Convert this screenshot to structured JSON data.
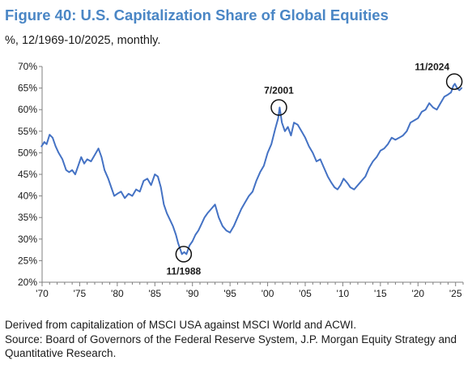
{
  "figure": {
    "title": "Figure 40: U.S. Capitalization Share of Global Equities",
    "subtitle": "%, 12/1969-10/2025, monthly.",
    "note": "Derived from capitalization of MSCI USA against MSCI World and ACWI.",
    "source": "Source: Board of Governors of the Federal Reserve System, J.P. Morgan Equity Strategy and Quantitative Research."
  },
  "chart_data": {
    "type": "line",
    "title": "Figure 40: U.S. Capitalization Share of Global Equities",
    "subtitle": "%, 12/1969-10/2025, monthly.",
    "xlabel": "",
    "ylabel": "",
    "xlim": [
      1970,
      2026
    ],
    "ylim": [
      20,
      70
    ],
    "grid": false,
    "legend": "none",
    "line_color": "#4472c4",
    "y_ticks": [
      "20%",
      "25%",
      "30%",
      "35%",
      "40%",
      "45%",
      "50%",
      "55%",
      "60%",
      "65%",
      "70%"
    ],
    "y_tick_values": [
      20,
      25,
      30,
      35,
      40,
      45,
      50,
      55,
      60,
      65,
      70
    ],
    "x_ticks": [
      "'70",
      "'75",
      "'80",
      "'85",
      "'90",
      "'95",
      "'00",
      "'05",
      "'10",
      "'15",
      "'20",
      "'25"
    ],
    "x_tick_values": [
      1970,
      1975,
      1980,
      1985,
      1990,
      1995,
      2000,
      2005,
      2010,
      2015,
      2020,
      2025
    ],
    "x": [
      1969.92,
      1970.3,
      1970.6,
      1971.0,
      1971.4,
      1971.8,
      1972.2,
      1972.7,
      1973.2,
      1973.6,
      1974.0,
      1974.4,
      1974.8,
      1975.2,
      1975.6,
      1976.0,
      1976.5,
      1977.0,
      1977.5,
      1977.9,
      1978.3,
      1978.8,
      1979.2,
      1979.6,
      1980.0,
      1980.5,
      1981.0,
      1981.5,
      1982.0,
      1982.5,
      1983.0,
      1983.5,
      1984.0,
      1984.5,
      1985.0,
      1985.4,
      1985.8,
      1986.2,
      1986.6,
      1987.0,
      1987.4,
      1987.8,
      1988.1,
      1988.4,
      1988.6,
      1988.9,
      1989.2,
      1989.6,
      1990.0,
      1990.4,
      1990.8,
      1991.2,
      1991.6,
      1992.0,
      1992.5,
      1993.0,
      1993.5,
      1994.0,
      1994.5,
      1995.0,
      1995.5,
      1996.0,
      1996.5,
      1997.0,
      1997.5,
      1998.0,
      1998.5,
      1999.0,
      1999.5,
      2000.0,
      2000.5,
      2001.0,
      2001.4,
      2001.6,
      2001.9,
      2002.3,
      2002.7,
      2003.1,
      2003.5,
      2004.0,
      2004.5,
      2005.0,
      2005.5,
      2006.0,
      2006.5,
      2007.0,
      2007.5,
      2008.0,
      2008.5,
      2008.9,
      2009.3,
      2009.7,
      2010.1,
      2010.6,
      2011.0,
      2011.5,
      2012.0,
      2012.5,
      2013.0,
      2013.5,
      2014.0,
      2014.5,
      2015.0,
      2015.5,
      2016.0,
      2016.5,
      2017.0,
      2017.5,
      2018.0,
      2018.5,
      2019.0,
      2019.5,
      2020.0,
      2020.5,
      2021.0,
      2021.5,
      2022.0,
      2022.5,
      2023.0,
      2023.5,
      2024.0,
      2024.4,
      2024.7,
      2024.9,
      2025.2,
      2025.5,
      2025.8
    ],
    "series": [
      {
        "name": "",
        "values": [
          51.5,
          52.5,
          52.0,
          54.2,
          53.5,
          51.5,
          50.0,
          48.5,
          46.0,
          45.5,
          46.0,
          45.0,
          47.0,
          49.0,
          47.5,
          48.5,
          48.0,
          49.5,
          51.0,
          49.0,
          46.0,
          44.0,
          42.0,
          40.0,
          40.5,
          41.0,
          39.5,
          40.5,
          40.0,
          41.5,
          41.0,
          43.5,
          44.0,
          42.5,
          45.0,
          44.5,
          42.0,
          38.0,
          36.0,
          34.5,
          33.0,
          31.0,
          29.0,
          27.5,
          26.5,
          27.0,
          26.5,
          28.5,
          29.5,
          31.0,
          32.0,
          33.5,
          35.0,
          36.0,
          37.0,
          38.0,
          35.0,
          33.0,
          32.0,
          31.5,
          33.0,
          35.0,
          37.0,
          38.5,
          40.0,
          41.0,
          43.5,
          45.5,
          47.0,
          50.0,
          52.0,
          55.5,
          58.0,
          60.5,
          57.0,
          55.0,
          56.0,
          54.0,
          57.0,
          56.5,
          55.0,
          53.5,
          51.5,
          50.0,
          48.0,
          48.5,
          46.5,
          44.5,
          43.0,
          42.0,
          41.5,
          42.5,
          44.0,
          43.0,
          42.0,
          41.5,
          42.5,
          43.5,
          44.5,
          46.5,
          48.0,
          49.0,
          50.5,
          51.0,
          52.0,
          53.5,
          53.0,
          53.5,
          54.0,
          55.0,
          57.0,
          57.5,
          58.0,
          59.5,
          60.0,
          61.5,
          60.5,
          60.0,
          61.5,
          63.0,
          63.5,
          64.0,
          65.5,
          66.0,
          65.0,
          64.5,
          65.0
        ]
      }
    ],
    "annotations": [
      {
        "label": "11/1988",
        "x": 1988.83,
        "y": 26.5,
        "label_pos": "below"
      },
      {
        "label": "7/2001",
        "x": 2001.5,
        "y": 60.5,
        "label_pos": "above"
      },
      {
        "label": "11/2024",
        "x": 2024.83,
        "y": 66.5,
        "label_pos": "above-left"
      }
    ]
  }
}
